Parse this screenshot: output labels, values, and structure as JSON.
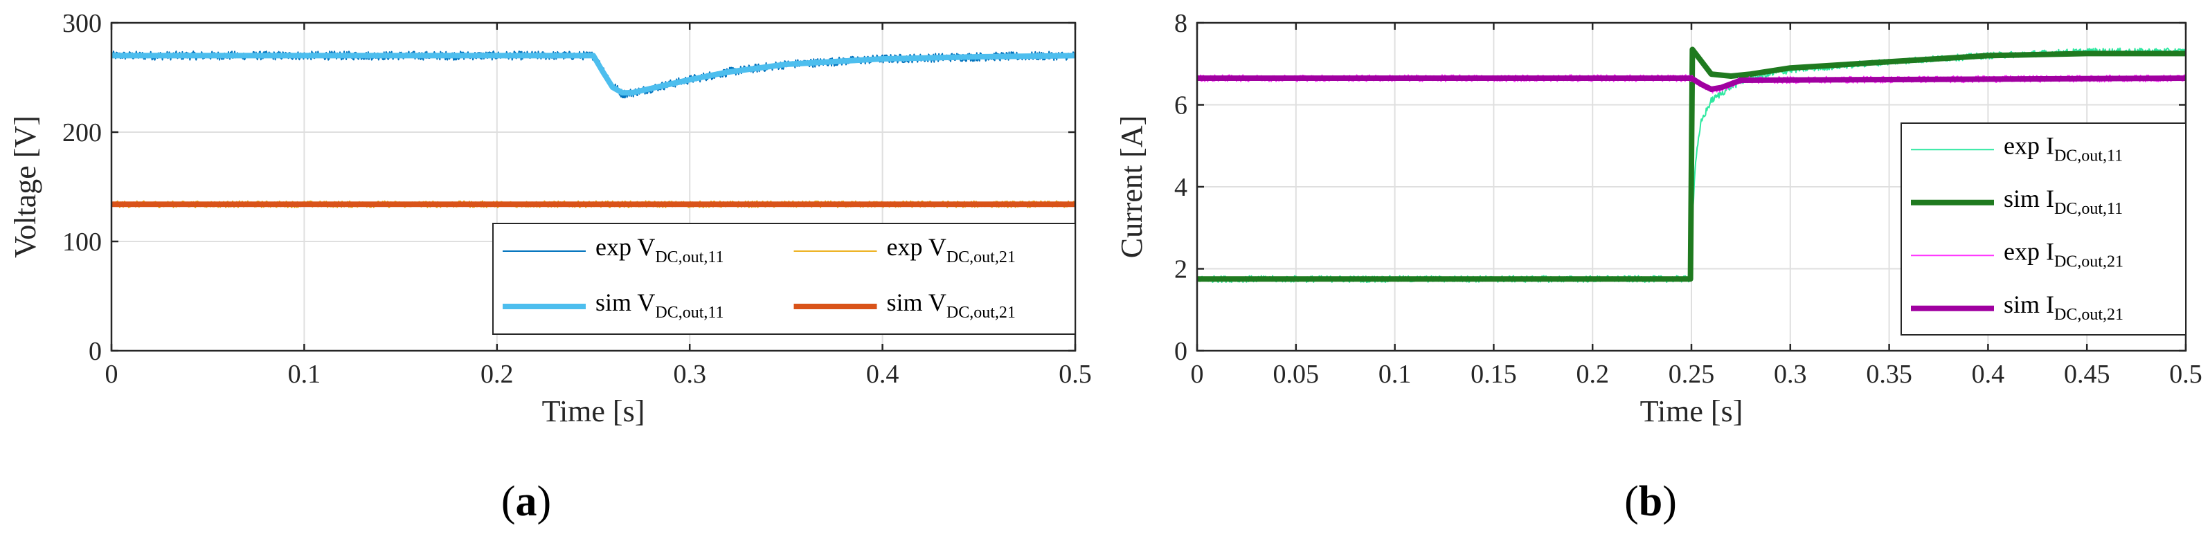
{
  "chart_data": [
    {
      "type": "line",
      "panel_label": "a",
      "xlabel": "Time [s]",
      "ylabel": "Voltage [V]",
      "xlim": [
        0,
        0.5
      ],
      "ylim": [
        0,
        300
      ],
      "xticks": [
        0,
        0.1,
        0.2,
        0.3,
        0.4,
        0.5
      ],
      "xtick_labels": [
        "0",
        "0.1",
        "0.2",
        "0.3",
        "0.4",
        "0.5"
      ],
      "yticks": [
        0,
        100,
        200,
        300
      ],
      "ytick_labels": [
        "0",
        "100",
        "200",
        "300"
      ],
      "grid": true,
      "legend_position": "bottom-right",
      "legend_columns": 2,
      "series": [
        {
          "name": "exp V_DC,out,11",
          "label_main": "exp V",
          "label_sub": "DC,out,11",
          "color": "#0072bd",
          "style": "thin-noisy",
          "noise": 4,
          "x": [
            0,
            0.25,
            0.255,
            0.26,
            0.265,
            0.27,
            0.28,
            0.3,
            0.32,
            0.35,
            0.4,
            0.45,
            0.5
          ],
          "y": [
            270,
            270,
            258,
            243,
            235,
            236,
            240,
            248,
            255,
            262,
            267,
            269,
            270
          ]
        },
        {
          "name": "sim V_DC,out,11",
          "label_main": "sim V",
          "label_sub": "DC,out,11",
          "color": "#4dbeee",
          "style": "thick",
          "x": [
            0,
            0.25,
            0.255,
            0.26,
            0.265,
            0.27,
            0.28,
            0.3,
            0.32,
            0.35,
            0.4,
            0.45,
            0.5
          ],
          "y": [
            270,
            270,
            255,
            241,
            236,
            236,
            240,
            248,
            255,
            262,
            267,
            269,
            270
          ]
        },
        {
          "name": "exp V_DC,out,21",
          "label_main": "exp V",
          "label_sub": "DC,out,21",
          "color": "#edb120",
          "style": "thin-noisy",
          "noise": 3,
          "x": [
            0,
            0.5
          ],
          "y": [
            134,
            134
          ]
        },
        {
          "name": "sim V_DC,out,21",
          "label_main": "sim V",
          "label_sub": "DC,out,21",
          "color": "#d95319",
          "style": "thick",
          "x": [
            0,
            0.5
          ],
          "y": [
            134,
            134
          ]
        }
      ]
    },
    {
      "type": "line",
      "panel_label": "b",
      "xlabel": "Time [s]",
      "ylabel": "Current [A]",
      "xlim": [
        0,
        0.5
      ],
      "ylim": [
        0,
        8
      ],
      "xticks": [
        0,
        0.05,
        0.1,
        0.15,
        0.2,
        0.25,
        0.3,
        0.35,
        0.4,
        0.45,
        0.5
      ],
      "xtick_labels": [
        "0",
        "0.05",
        "0.1",
        "0.15",
        "0.2",
        "0.25",
        "0.3",
        "0.35",
        "0.4",
        "0.45",
        "0.5"
      ],
      "yticks": [
        0,
        2,
        4,
        6,
        8
      ],
      "ytick_labels": [
        "0",
        "2",
        "4",
        "6",
        "8"
      ],
      "grid": true,
      "legend_position": "right",
      "legend_columns": 1,
      "series": [
        {
          "name": "exp I_DC,out,11",
          "label_main": "exp I",
          "label_sub": "DC,out,11",
          "color": "#2ee8a0",
          "style": "thin-noisy",
          "noise": 0.08,
          "x": [
            0,
            0.249,
            0.2505,
            0.252,
            0.255,
            0.26,
            0.27,
            0.28,
            0.3,
            0.35,
            0.4,
            0.45,
            0.5
          ],
          "y": [
            1.75,
            1.75,
            3.2,
            4.6,
            5.6,
            6.1,
            6.45,
            6.65,
            6.85,
            7.05,
            7.2,
            7.3,
            7.3
          ]
        },
        {
          "name": "sim I_DC,out,11",
          "label_main": "sim I",
          "label_sub": "DC,out,11",
          "color": "#1f7a1f",
          "style": "thick",
          "x": [
            0,
            0.2495,
            0.2505,
            0.26,
            0.27,
            0.28,
            0.3,
            0.35,
            0.4,
            0.45,
            0.5
          ],
          "y": [
            1.75,
            1.75,
            7.35,
            6.75,
            6.7,
            6.75,
            6.9,
            7.05,
            7.2,
            7.25,
            7.25
          ]
        },
        {
          "name": "exp I_DC,out,21",
          "label_main": "exp I",
          "label_sub": "DC,out,21",
          "color": "#ff33ff",
          "style": "thin-noisy",
          "noise": 0.08,
          "x": [
            0,
            0.25,
            0.255,
            0.26,
            0.265,
            0.275,
            0.5
          ],
          "y": [
            6.65,
            6.65,
            6.5,
            6.35,
            6.4,
            6.6,
            6.65
          ]
        },
        {
          "name": "sim I_DC,out,21",
          "label_main": "sim I",
          "label_sub": "DC,out,21",
          "color": "#a000a0",
          "style": "thick",
          "x": [
            0,
            0.25,
            0.255,
            0.26,
            0.265,
            0.275,
            0.5
          ],
          "y": [
            6.65,
            6.65,
            6.5,
            6.38,
            6.42,
            6.6,
            6.65
          ]
        }
      ]
    }
  ]
}
